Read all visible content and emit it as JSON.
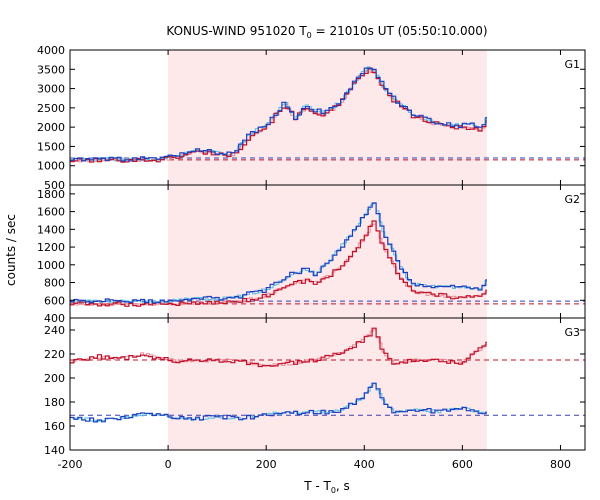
{
  "figure": {
    "title_main": "KONUS-WIND 951020 T",
    "title_sub": "0",
    "title_rest": " = 21010s UT (05:50:10.000)",
    "ylabel": "counts / sec",
    "xlabel_main": "T - T",
    "xlabel_sub": "0",
    "xlabel_rest": ", s"
  },
  "colors": {
    "red": "#c0102a",
    "pink": "#e8909c",
    "blue": "#1f3fbf",
    "cyan": "#56c0e0",
    "shade": "#fde8ea",
    "dash_red": "#c0102a",
    "dash_blue": "#3a3fb0"
  },
  "chart_data": {
    "type": "line",
    "x_axis": {
      "label": "T - T0, s",
      "range": [
        -200,
        850
      ],
      "ticks": [
        -200,
        0,
        200,
        400,
        600,
        800
      ]
    },
    "shaded_interval": [
      0,
      650
    ],
    "panels": [
      {
        "name": "G1",
        "ylim": [
          500,
          4000
        ],
        "yticks": [
          500,
          1000,
          1500,
          2000,
          2500,
          3000,
          3500,
          4000
        ],
        "background_red": 1150,
        "background_blue": 1200,
        "profile_red": [
          [
            -200,
            1130
          ],
          [
            -100,
            1150
          ],
          [
            -20,
            1150
          ],
          [
            0,
            1180
          ],
          [
            40,
            1300
          ],
          [
            60,
            1360
          ],
          [
            100,
            1320
          ],
          [
            130,
            1260
          ],
          [
            150,
            1500
          ],
          [
            170,
            1800
          ],
          [
            200,
            2000
          ],
          [
            220,
            2300
          ],
          [
            240,
            2600
          ],
          [
            260,
            2200
          ],
          [
            280,
            2500
          ],
          [
            300,
            2400
          ],
          [
            320,
            2300
          ],
          [
            350,
            2600
          ],
          [
            370,
            2900
          ],
          [
            390,
            3300
          ],
          [
            410,
            3500
          ],
          [
            420,
            3400
          ],
          [
            440,
            3000
          ],
          [
            460,
            2700
          ],
          [
            480,
            2500
          ],
          [
            500,
            2300
          ],
          [
            540,
            2100
          ],
          [
            580,
            2000
          ],
          [
            620,
            2000
          ],
          [
            640,
            1900
          ],
          [
            650,
            2150
          ]
        ],
        "profile_blue": [
          [
            -200,
            1160
          ],
          [
            -100,
            1170
          ],
          [
            -20,
            1170
          ],
          [
            0,
            1210
          ],
          [
            40,
            1330
          ],
          [
            60,
            1390
          ],
          [
            100,
            1350
          ],
          [
            130,
            1290
          ],
          [
            150,
            1550
          ],
          [
            170,
            1850
          ],
          [
            200,
            2050
          ],
          [
            220,
            2350
          ],
          [
            240,
            2650
          ],
          [
            260,
            2250
          ],
          [
            280,
            2550
          ],
          [
            300,
            2450
          ],
          [
            320,
            2350
          ],
          [
            350,
            2650
          ],
          [
            370,
            2950
          ],
          [
            390,
            3350
          ],
          [
            410,
            3550
          ],
          [
            420,
            3450
          ],
          [
            440,
            3050
          ],
          [
            460,
            2750
          ],
          [
            480,
            2550
          ],
          [
            500,
            2350
          ],
          [
            540,
            2150
          ],
          [
            580,
            2050
          ],
          [
            620,
            2050
          ],
          [
            640,
            1950
          ],
          [
            650,
            2250
          ]
        ]
      },
      {
        "name": "G2",
        "ylim": [
          400,
          1900
        ],
        "yticks": [
          400,
          600,
          800,
          1000,
          1200,
          1400,
          1600,
          1800
        ],
        "background_red": 560,
        "background_blue": 590,
        "profile_red": [
          [
            -200,
            560
          ],
          [
            -100,
            555
          ],
          [
            0,
            560
          ],
          [
            50,
            570
          ],
          [
            100,
            570
          ],
          [
            150,
            590
          ],
          [
            200,
            650
          ],
          [
            250,
            780
          ],
          [
            280,
            820
          ],
          [
            300,
            800
          ],
          [
            330,
            880
          ],
          [
            360,
            1000
          ],
          [
            380,
            1150
          ],
          [
            400,
            1300
          ],
          [
            420,
            1480
          ],
          [
            440,
            1200
          ],
          [
            460,
            1000
          ],
          [
            480,
            800
          ],
          [
            500,
            700
          ],
          [
            540,
            660
          ],
          [
            580,
            640
          ],
          [
            620,
            640
          ],
          [
            640,
            640
          ],
          [
            650,
            700
          ]
        ],
        "profile_blue": [
          [
            -200,
            590
          ],
          [
            -100,
            590
          ],
          [
            0,
            590
          ],
          [
            50,
            620
          ],
          [
            100,
            620
          ],
          [
            150,
            650
          ],
          [
            200,
            720
          ],
          [
            250,
            890
          ],
          [
            280,
            950
          ],
          [
            300,
            900
          ],
          [
            330,
            1050
          ],
          [
            360,
            1250
          ],
          [
            380,
            1400
          ],
          [
            400,
            1550
          ],
          [
            420,
            1720
          ],
          [
            440,
            1350
          ],
          [
            460,
            1150
          ],
          [
            480,
            920
          ],
          [
            500,
            780
          ],
          [
            540,
            760
          ],
          [
            580,
            750
          ],
          [
            620,
            740
          ],
          [
            640,
            740
          ],
          [
            650,
            820
          ]
        ]
      },
      {
        "name": "G3",
        "ylim": [
          140,
          250
        ],
        "yticks": [
          140,
          160,
          180,
          200,
          220,
          240
        ],
        "background_red": 215,
        "background_blue": 169,
        "profile_red": [
          [
            -200,
            213
          ],
          [
            -150,
            218
          ],
          [
            -100,
            216
          ],
          [
            -50,
            220
          ],
          [
            0,
            215
          ],
          [
            50,
            214
          ],
          [
            100,
            215
          ],
          [
            150,
            214
          ],
          [
            200,
            210
          ],
          [
            250,
            212
          ],
          [
            300,
            215
          ],
          [
            350,
            220
          ],
          [
            400,
            232
          ],
          [
            420,
            240
          ],
          [
            440,
            222
          ],
          [
            460,
            212
          ],
          [
            500,
            215
          ],
          [
            550,
            215
          ],
          [
            600,
            213
          ],
          [
            650,
            228
          ]
        ],
        "profile_blue": [
          [
            -200,
            168
          ],
          [
            -150,
            165
          ],
          [
            -100,
            166
          ],
          [
            -50,
            170
          ],
          [
            0,
            168
          ],
          [
            50,
            165
          ],
          [
            100,
            168
          ],
          [
            150,
            166
          ],
          [
            200,
            170
          ],
          [
            250,
            171
          ],
          [
            300,
            172
          ],
          [
            350,
            172
          ],
          [
            400,
            185
          ],
          [
            420,
            197
          ],
          [
            440,
            180
          ],
          [
            460,
            172
          ],
          [
            500,
            174
          ],
          [
            550,
            172
          ],
          [
            600,
            175
          ],
          [
            650,
            170
          ]
        ]
      }
    ]
  }
}
